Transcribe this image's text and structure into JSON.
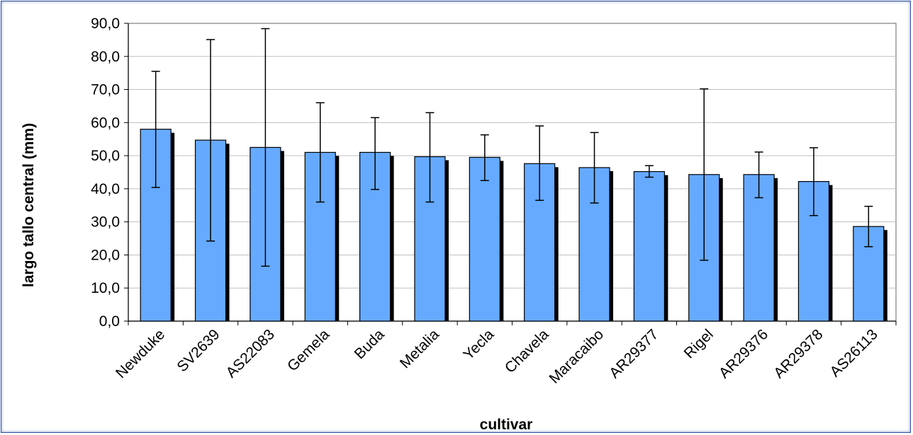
{
  "chart_data": {
    "type": "bar",
    "title": "",
    "xlabel": "cultivar",
    "ylabel": "largo tallo central (mm)",
    "ylim": [
      0,
      90
    ],
    "ytick_step": 10,
    "ytick_labels": [
      "0,0",
      "10,0",
      "20,0",
      "30,0",
      "40,0",
      "50,0",
      "60,0",
      "70,0",
      "80,0",
      "90,0"
    ],
    "grid": true,
    "categories": [
      "Newduke",
      "SV2639",
      "AS22083",
      "Gemela",
      "Buda",
      "Metalia",
      "Yecla",
      "Chavela",
      "Maracaibo",
      "AR29377",
      "Rigel",
      "AR29376",
      "AR29378",
      "AS26113"
    ],
    "values": [
      58.0,
      54.7,
      52.5,
      51.0,
      51.0,
      49.7,
      49.5,
      47.6,
      46.4,
      45.2,
      44.3,
      44.3,
      42.2,
      28.6
    ],
    "error_low": [
      40.4,
      24.2,
      16.6,
      36.0,
      39.8,
      36.0,
      42.5,
      36.5,
      35.7,
      43.5,
      18.4,
      37.3,
      31.9,
      22.5
    ],
    "error_high": [
      75.5,
      85.1,
      88.4,
      66.0,
      61.5,
      63.0,
      56.3,
      59.0,
      57.0,
      47.0,
      70.2,
      51.1,
      52.4,
      34.7
    ],
    "colors": {
      "bar": "#66aaff",
      "shadow": "#000000",
      "grid": "#c0c0c0",
      "axis": "#808080",
      "frame": "#2f4fa3"
    }
  }
}
